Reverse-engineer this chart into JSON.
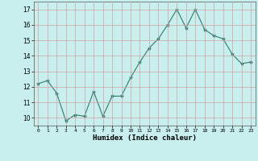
{
  "x": [
    0,
    1,
    2,
    3,
    4,
    5,
    6,
    7,
    8,
    9,
    10,
    11,
    12,
    13,
    14,
    15,
    16,
    17,
    18,
    19,
    20,
    21,
    22,
    23
  ],
  "y": [
    12.2,
    12.4,
    11.6,
    9.8,
    10.2,
    10.1,
    11.7,
    10.1,
    11.4,
    11.4,
    12.6,
    13.6,
    14.5,
    15.1,
    16.0,
    17.0,
    15.8,
    17.0,
    15.7,
    15.3,
    15.1,
    14.1,
    13.5,
    13.6
  ],
  "line_color": "#2e7d6e",
  "marker": "*",
  "marker_size": 3,
  "background_color": "#c8eeee",
  "grid_color": "#d0a0a0",
  "xlabel": "Humidex (Indice chaleur)",
  "ylim": [
    9.5,
    17.5
  ],
  "xlim": [
    -0.5,
    23.5
  ],
  "yticks": [
    10,
    11,
    12,
    13,
    14,
    15,
    16,
    17
  ],
  "xticks": [
    0,
    1,
    2,
    3,
    4,
    5,
    6,
    7,
    8,
    9,
    10,
    11,
    12,
    13,
    14,
    15,
    16,
    17,
    18,
    19,
    20,
    21,
    22,
    23
  ]
}
